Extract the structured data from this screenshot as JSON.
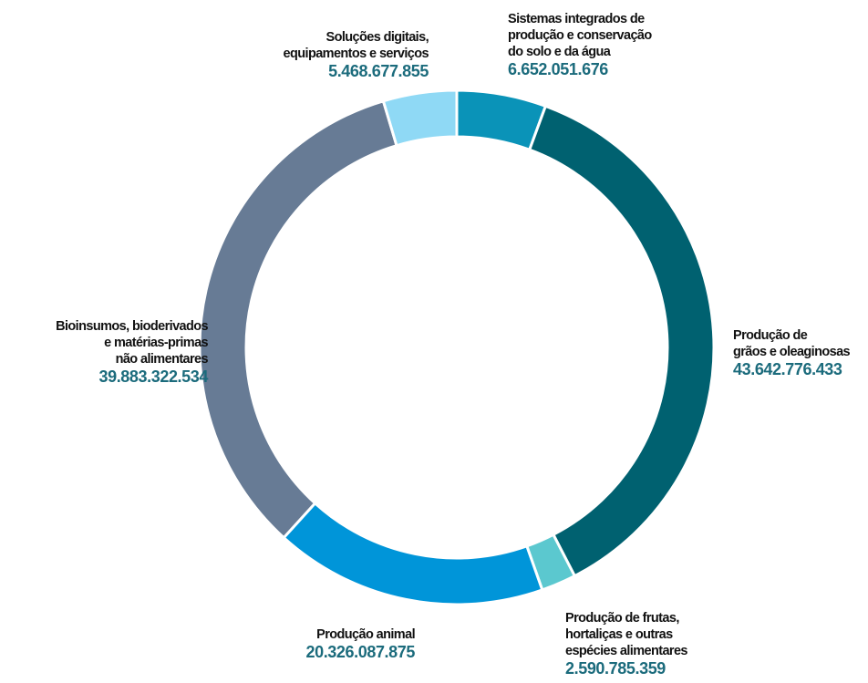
{
  "chart_data": {
    "type": "donut",
    "categories": [
      [
        "Sistemas integrados de",
        "produção e conservação",
        "do solo e da água"
      ],
      [
        "Produção de",
        "grãos e oleaginosas"
      ],
      [
        "Produção de frutas,",
        "hortaliças e outras",
        "espécies alimentares"
      ],
      [
        "Produção animal"
      ],
      [
        "Bioinsumos, bioderivados",
        "e matérias-primas",
        "não alimentares"
      ],
      [
        "Soluções digitais,",
        "equipamentos e serviços"
      ]
    ],
    "values": [
      6652051676,
      43642776433,
      2590785359,
      20326087875,
      39883322534,
      5468677855
    ],
    "value_labels": [
      "6.652.051.676",
      "43.642.776.433",
      "2.590.785.359",
      "20.326.087.875",
      "39.883.322.534",
      "5.468.677.855"
    ],
    "colors": [
      "#0a93b8",
      "#006170",
      "#5bc8cf",
      "#0095d9",
      "#677b95",
      "#8fd9f5"
    ]
  }
}
